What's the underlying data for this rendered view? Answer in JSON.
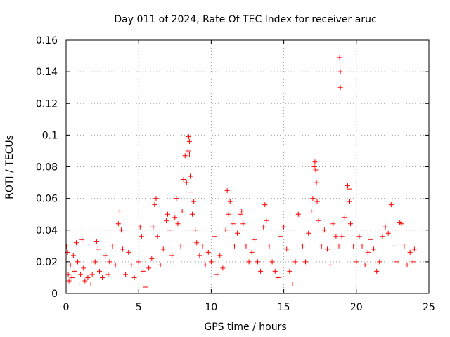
{
  "chart_data": {
    "type": "scatter",
    "title": "Day 011 of 2024, Rate Of TEC Index for receiver aruc",
    "xlabel": "GPS time / hours",
    "ylabel": "ROTI / TECUs",
    "xlim": [
      0,
      25
    ],
    "ylim": [
      0,
      0.16
    ],
    "x_ticks": [
      0,
      5,
      10,
      15,
      20,
      25
    ],
    "x_tick_labels": [
      "0",
      "5",
      "10",
      "15",
      "20",
      "25"
    ],
    "y_ticks": [
      0,
      0.02,
      0.04,
      0.06,
      0.08,
      0.1,
      0.12,
      0.14,
      0.16
    ],
    "y_tick_labels": [
      "0",
      "0.02",
      "0.04",
      "0.06",
      "0.08",
      "0.1",
      "0.12",
      "0.14",
      "0.16"
    ],
    "grid": true,
    "marker": "plus",
    "color": "#ff0000",
    "series": [
      {
        "values": [
          [
            0.05,
            0.03
          ],
          [
            0.1,
            0.026
          ],
          [
            0.15,
            0.012
          ],
          [
            0.2,
            0.008
          ],
          [
            0.3,
            0.018
          ],
          [
            0.4,
            0.01
          ],
          [
            0.5,
            0.024
          ],
          [
            0.6,
            0.014
          ],
          [
            0.7,
            0.032
          ],
          [
            0.8,
            0.02
          ],
          [
            0.9,
            0.006
          ],
          [
            1.0,
            0.012
          ],
          [
            1.1,
            0.034
          ],
          [
            1.2,
            0.016
          ],
          [
            1.3,
            0.008
          ],
          [
            1.5,
            0.01
          ],
          [
            1.7,
            0.006
          ],
          [
            1.8,
            0.012
          ],
          [
            2.0,
            0.02
          ],
          [
            2.1,
            0.033
          ],
          [
            2.2,
            0.028
          ],
          [
            2.3,
            0.014
          ],
          [
            2.5,
            0.01
          ],
          [
            2.7,
            0.024
          ],
          [
            2.9,
            0.012
          ],
          [
            3.0,
            0.02
          ],
          [
            3.2,
            0.03
          ],
          [
            3.4,
            0.018
          ],
          [
            3.6,
            0.044
          ],
          [
            3.7,
            0.052
          ],
          [
            3.8,
            0.04
          ],
          [
            3.9,
            0.028
          ],
          [
            4.1,
            0.012
          ],
          [
            4.3,
            0.026
          ],
          [
            4.5,
            0.018
          ],
          [
            4.7,
            0.01
          ],
          [
            5.0,
            0.02
          ],
          [
            5.1,
            0.042
          ],
          [
            5.2,
            0.036
          ],
          [
            5.3,
            0.014
          ],
          [
            5.5,
            0.004
          ],
          [
            5.7,
            0.016
          ],
          [
            5.9,
            0.022
          ],
          [
            6.0,
            0.042
          ],
          [
            6.1,
            0.056
          ],
          [
            6.2,
            0.06
          ],
          [
            6.3,
            0.036
          ],
          [
            6.5,
            0.018
          ],
          [
            6.7,
            0.028
          ],
          [
            6.9,
            0.046
          ],
          [
            7.0,
            0.05
          ],
          [
            7.1,
            0.04
          ],
          [
            7.3,
            0.024
          ],
          [
            7.5,
            0.048
          ],
          [
            7.6,
            0.06
          ],
          [
            7.7,
            0.044
          ],
          [
            7.9,
            0.03
          ],
          [
            8.0,
            0.052
          ],
          [
            8.1,
            0.072
          ],
          [
            8.2,
            0.087
          ],
          [
            8.3,
            0.07
          ],
          [
            8.4,
            0.09
          ],
          [
            8.45,
            0.099
          ],
          [
            8.5,
            0.096
          ],
          [
            8.5,
            0.088
          ],
          [
            8.55,
            0.074
          ],
          [
            8.6,
            0.064
          ],
          [
            8.7,
            0.05
          ],
          [
            8.8,
            0.058
          ],
          [
            8.9,
            0.04
          ],
          [
            9.0,
            0.032
          ],
          [
            9.2,
            0.024
          ],
          [
            9.4,
            0.03
          ],
          [
            9.6,
            0.018
          ],
          [
            9.8,
            0.026
          ],
          [
            10.0,
            0.02
          ],
          [
            10.2,
            0.036
          ],
          [
            10.4,
            0.012
          ],
          [
            10.6,
            0.024
          ],
          [
            10.8,
            0.016
          ],
          [
            11.0,
            0.04
          ],
          [
            11.1,
            0.065
          ],
          [
            11.2,
            0.05
          ],
          [
            11.3,
            0.058
          ],
          [
            11.5,
            0.044
          ],
          [
            11.6,
            0.03
          ],
          [
            11.8,
            0.038
          ],
          [
            12.0,
            0.05
          ],
          [
            12.1,
            0.052
          ],
          [
            12.2,
            0.044
          ],
          [
            12.4,
            0.03
          ],
          [
            12.6,
            0.02
          ],
          [
            12.8,
            0.026
          ],
          [
            13.0,
            0.034
          ],
          [
            13.2,
            0.02
          ],
          [
            13.4,
            0.014
          ],
          [
            13.6,
            0.042
          ],
          [
            13.7,
            0.056
          ],
          [
            13.8,
            0.046
          ],
          [
            14.0,
            0.03
          ],
          [
            14.2,
            0.02
          ],
          [
            14.4,
            0.014
          ],
          [
            14.6,
            0.01
          ],
          [
            14.8,
            0.036
          ],
          [
            15.0,
            0.042
          ],
          [
            15.2,
            0.028
          ],
          [
            15.4,
            0.014
          ],
          [
            15.6,
            0.006
          ],
          [
            15.8,
            0.02
          ],
          [
            16.0,
            0.05
          ],
          [
            16.1,
            0.049
          ],
          [
            16.3,
            0.03
          ],
          [
            16.5,
            0.02
          ],
          [
            16.7,
            0.038
          ],
          [
            16.9,
            0.052
          ],
          [
            17.0,
            0.06
          ],
          [
            17.1,
            0.08
          ],
          [
            17.15,
            0.083
          ],
          [
            17.2,
            0.078
          ],
          [
            17.25,
            0.07
          ],
          [
            17.3,
            0.058
          ],
          [
            17.4,
            0.046
          ],
          [
            17.6,
            0.03
          ],
          [
            17.8,
            0.04
          ],
          [
            18.0,
            0.028
          ],
          [
            18.2,
            0.018
          ],
          [
            18.4,
            0.044
          ],
          [
            18.6,
            0.036
          ],
          [
            18.8,
            0.03
          ],
          [
            18.85,
            0.149
          ],
          [
            18.9,
            0.14
          ],
          [
            18.9,
            0.13
          ],
          [
            19.0,
            0.036
          ],
          [
            19.2,
            0.048
          ],
          [
            19.4,
            0.068
          ],
          [
            19.5,
            0.066
          ],
          [
            19.55,
            0.058
          ],
          [
            19.6,
            0.044
          ],
          [
            19.8,
            0.03
          ],
          [
            20.0,
            0.02
          ],
          [
            20.2,
            0.036
          ],
          [
            20.4,
            0.03
          ],
          [
            20.6,
            0.018
          ],
          [
            20.8,
            0.026
          ],
          [
            21.0,
            0.034
          ],
          [
            21.2,
            0.028
          ],
          [
            21.4,
            0.014
          ],
          [
            21.6,
            0.02
          ],
          [
            21.8,
            0.036
          ],
          [
            22.0,
            0.042
          ],
          [
            22.2,
            0.038
          ],
          [
            22.4,
            0.056
          ],
          [
            22.6,
            0.03
          ],
          [
            22.8,
            0.02
          ],
          [
            23.0,
            0.045
          ],
          [
            23.1,
            0.044
          ],
          [
            23.3,
            0.03
          ],
          [
            23.5,
            0.018
          ],
          [
            23.7,
            0.026
          ],
          [
            23.9,
            0.02
          ],
          [
            24.0,
            0.028
          ]
        ]
      }
    ]
  }
}
